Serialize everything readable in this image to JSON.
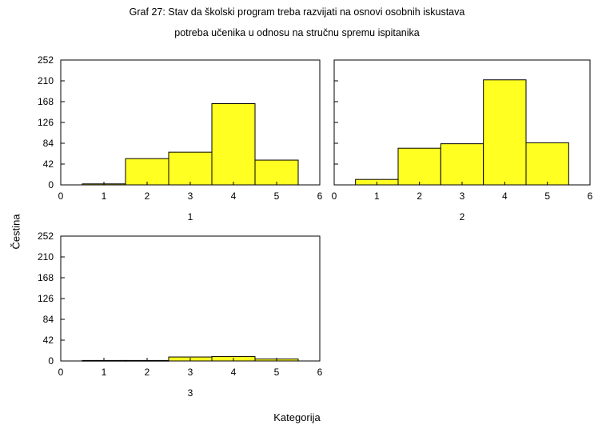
{
  "title_line1": "Graf 27: Stav da školski program treba razvijati na osnovi osobnih iskustava",
  "title_line2": "potreba učenika u odnosu na stručnu spremu ispitanika",
  "ylabel": "Čestina",
  "xlabel": "Kategorija",
  "colors": {
    "bar_fill": "#ffff22",
    "bar_stroke": "#000000",
    "frame": "#000000"
  },
  "chart_data": [
    {
      "type": "bar",
      "panel_label": "1",
      "x_ticks": [
        "0",
        "1",
        "2",
        "3",
        "4",
        "5",
        "6"
      ],
      "y_ticks": [
        "0",
        "42",
        "84",
        "126",
        "168",
        "210",
        "252"
      ],
      "xlim": [
        0,
        6
      ],
      "ylim": [
        0,
        252
      ],
      "categories": [
        1,
        2,
        3,
        4,
        5
      ],
      "values": [
        2,
        53,
        66,
        164,
        50
      ]
    },
    {
      "type": "bar",
      "panel_label": "2",
      "x_ticks": [
        "0",
        "1",
        "2",
        "3",
        "4",
        "5",
        "6"
      ],
      "y_ticks": [],
      "xlim": [
        0,
        6
      ],
      "ylim": [
        0,
        252
      ],
      "categories": [
        1,
        2,
        3,
        4,
        5
      ],
      "values": [
        11,
        74,
        83,
        212,
        85
      ]
    },
    {
      "type": "bar",
      "panel_label": "3",
      "x_ticks": [
        "0",
        "1",
        "2",
        "3",
        "4",
        "5",
        "6"
      ],
      "y_ticks": [
        "0",
        "42",
        "84",
        "126",
        "168",
        "210",
        "252"
      ],
      "xlim": [
        0,
        6
      ],
      "ylim": [
        0,
        252
      ],
      "categories": [
        1,
        2,
        3,
        4,
        5
      ],
      "values": [
        1,
        1,
        8,
        9,
        4
      ]
    }
  ]
}
